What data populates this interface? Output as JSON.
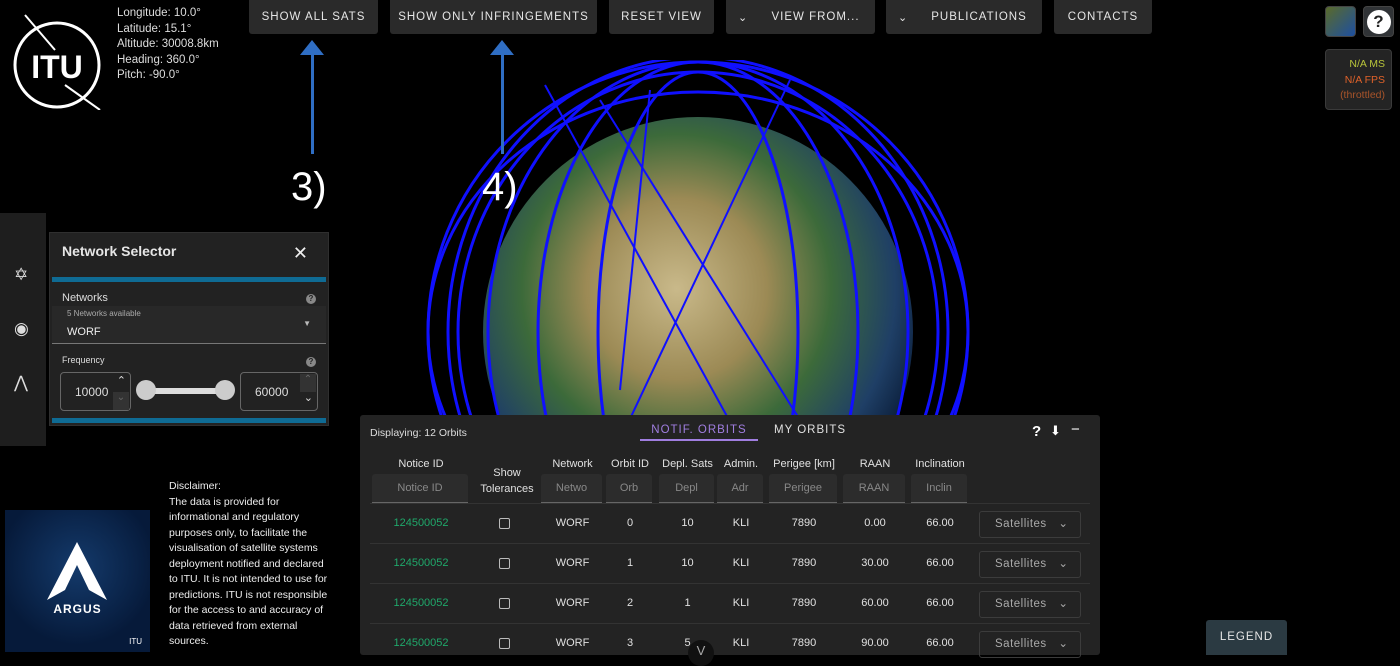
{
  "camera": {
    "longitude": "Longitude: 10.0°",
    "latitude": "Latitude: 15.1°",
    "altitude": "Altitude: 30008.8km",
    "heading": "Heading: 360.0°",
    "pitch": "Pitch: -90.0°"
  },
  "logo_text": "ITU",
  "toolbar": {
    "show_all": "SHOW ALL SATS",
    "show_infringements": "SHOW ONLY INFRINGEMENTS",
    "reset": "RESET VIEW",
    "view_from": "VIEW FROM...",
    "publications": "PUBLICATIONS",
    "contacts": "CONTACTS"
  },
  "annotations": {
    "a3": "3)",
    "a4": "4)"
  },
  "stats": {
    "ms": "N/A MS",
    "fps": "N/A FPS",
    "throttled": "(throttled)"
  },
  "network_selector": {
    "title": "Network Selector",
    "networks_label": "Networks",
    "available": "5 Networks available",
    "selected": "WORF",
    "frequency_label": "Frequency",
    "freq_min": "10000",
    "freq_max": "60000",
    "slider_range": [
      0,
      1
    ]
  },
  "disclaimer": {
    "title": "Disclaimer:",
    "text": "The data is provided for informational and regulatory purposes only, to facilitate the visualisation of satellite systems deployment notified and declared to ITU. It is not intended to use for predictions. ITU is not responsible for the access to and accuracy of data retrieved from external sources."
  },
  "argus": {
    "brand": "ARGUS",
    "sub": "ITU"
  },
  "table": {
    "displaying": "Displaying: 12 Orbits",
    "tabs": [
      "NOTIF. ORBITS",
      "MY ORBITS"
    ],
    "active_tab": 0,
    "headers": [
      "Notice ID",
      "Show Tolerances",
      "Network",
      "Orbit ID",
      "Depl. Sats",
      "Admin.",
      "Perigee [km]",
      "RAAN",
      "Inclination"
    ],
    "filters": [
      "Notice ID",
      "",
      "Netwo",
      "Orb",
      "Depl",
      "Adr",
      "Perigee",
      "RAAN",
      "Inclin"
    ],
    "rows": [
      {
        "notice": "124500052",
        "network": "WORF",
        "orbit": "0",
        "depl": "10",
        "admin": "KLI",
        "perigee": "7890",
        "raan": "0.00",
        "incl": "66.00",
        "action": "Satellites"
      },
      {
        "notice": "124500052",
        "network": "WORF",
        "orbit": "1",
        "depl": "10",
        "admin": "KLI",
        "perigee": "7890",
        "raan": "30.00",
        "incl": "66.00",
        "action": "Satellites"
      },
      {
        "notice": "124500052",
        "network": "WORF",
        "orbit": "2",
        "depl": "1",
        "admin": "KLI",
        "perigee": "7890",
        "raan": "60.00",
        "incl": "66.00",
        "action": "Satellites"
      },
      {
        "notice": "124500052",
        "network": "WORF",
        "orbit": "3",
        "depl": "5",
        "admin": "KLI",
        "perigee": "7890",
        "raan": "90.00",
        "incl": "66.00",
        "action": "Satellites"
      }
    ]
  },
  "legend": "LEGEND",
  "colors": {
    "orbit": "#1010ff",
    "notice_id": "#1fa86a",
    "tab_active": "#a07ee0",
    "accent_bar": "#0f6b94",
    "ms": "#b8c43a",
    "fps": "#e0622a"
  }
}
